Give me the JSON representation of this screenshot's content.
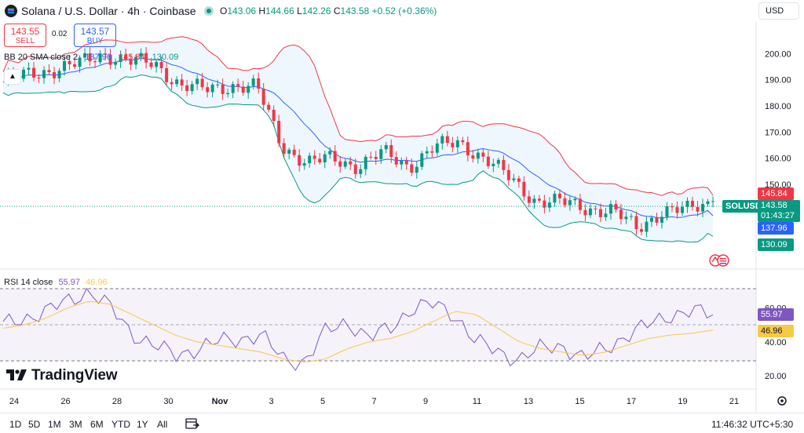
{
  "header": {
    "title": "Solana / U.S. Dollar · 4h · Coinbase",
    "ohlc": {
      "o_label": "O",
      "o": "143.06",
      "h_label": "H",
      "h": "144.66",
      "l_label": "L",
      "l": "142.26",
      "c_label": "C",
      "c": "143.58",
      "change": "+0.52 (+0.36%)"
    },
    "currency": "USD"
  },
  "trade": {
    "sell_price": "143.55",
    "sell_label": "SELL",
    "spread": "0.02",
    "buy_price": "143.57",
    "buy_label": "BUY"
  },
  "bb_legend": {
    "name": "BB 20 SMA close 2",
    "basis": "137.96",
    "upper": "145.84",
    "lower": "130.09"
  },
  "rsi_legend": {
    "name": "RSI 14 close",
    "rsi": "55.97",
    "ma": "46.96"
  },
  "price_tags": {
    "upper": "145.84",
    "symbol": "SOLUSD",
    "price": "143.58",
    "countdown": "01:43:27",
    "basis": "137.96",
    "lower": "130.09",
    "rsi": "55.97",
    "rsi_ma": "46.96"
  },
  "logo_text": "TradingView",
  "bottom_bar": {
    "ranges": [
      "1D",
      "5D",
      "1M",
      "3M",
      "6M",
      "YTD",
      "1Y",
      "All"
    ],
    "clock": "11:46:32 UTC+5:30"
  },
  "colors": {
    "up": "#089981",
    "down": "#f23645",
    "basis": "#2962ff",
    "rsi": "#7e57c2",
    "rsi_ma": "#f7c948"
  },
  "chart_data": [
    {
      "type": "candlestick",
      "interval": "4h",
      "y_ticks": [
        200,
        190,
        180,
        170,
        160,
        150
      ],
      "ylim": [
        126,
        210
      ],
      "x_ticks": [
        "24",
        "26",
        "28",
        "30",
        "Nov",
        "3",
        "5",
        "7",
        "9",
        "11",
        "13",
        "15",
        "17",
        "19",
        "21"
      ],
      "close_series_approx": {
        "x": [
          "24",
          "25",
          "26",
          "27",
          "28",
          "29",
          "30",
          "31",
          "Nov",
          "2",
          "3",
          "4",
          "5",
          "6",
          "7",
          "8",
          "9",
          "10",
          "11",
          "12",
          "13",
          "14",
          "15",
          "16",
          "17",
          "18",
          "19",
          "20",
          "20.4"
        ],
        "close": [
          189,
          192,
          194,
          196,
          200,
          197,
          196,
          188,
          186,
          188,
          187,
          165,
          158,
          160,
          157,
          162,
          157,
          164,
          166,
          160,
          152,
          144,
          143,
          141,
          140,
          133,
          140,
          140,
          143.58
        ]
      },
      "bollinger": {
        "upper_last": 145.84,
        "basis_last": 137.96,
        "lower_last": 130.09
      },
      "last_price": 143.58
    },
    {
      "type": "line",
      "name": "RSI 14 close",
      "y_ticks": [
        60,
        40,
        20
      ],
      "ylim": [
        15,
        75
      ],
      "bands": [
        30,
        70
      ],
      "series": [
        {
          "name": "RSI",
          "values": [
            50,
            54,
            58,
            64,
            70,
            60,
            45,
            38,
            32,
            36,
            40,
            42,
            44,
            30,
            28,
            46,
            52,
            42,
            48,
            60,
            62,
            56,
            40,
            34,
            30,
            36,
            38,
            30,
            36,
            44,
            50,
            56,
            58,
            55.97
          ]
        },
        {
          "name": "MA",
          "values": [
            48,
            50,
            54,
            60,
            64,
            62,
            56,
            50,
            44,
            40,
            38,
            36,
            34,
            30,
            28,
            30,
            36,
            40,
            42,
            46,
            52,
            58,
            56,
            48,
            40,
            36,
            34,
            32,
            34,
            38,
            42,
            44,
            45,
            46.96
          ]
        }
      ]
    }
  ]
}
